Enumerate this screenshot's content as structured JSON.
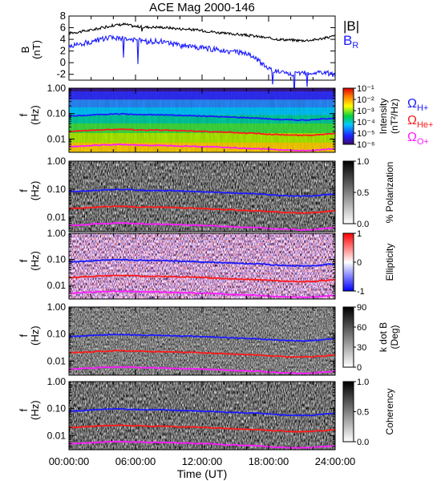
{
  "title": "ACE Mag 2000-146",
  "time_axis": {
    "label": "Time (UT)",
    "ticks": [
      "00:00:00",
      "06:00:00",
      "12:00:00",
      "18:00:00",
      "24:00:00"
    ],
    "range_hours": [
      0,
      24
    ]
  },
  "colors": {
    "B_total": "#000000",
    "B_R": "#1a1aff",
    "omega_H": "#1a1aff",
    "omega_He": "#ff1a1a",
    "omega_O": "#ff1aff"
  },
  "panels": [
    {
      "id": "b-field",
      "ylabel": "B",
      "yunit": "(nT)",
      "ticks": [
        "8",
        "6",
        "4",
        "2",
        "0",
        "-2"
      ],
      "legend": [
        {
          "text": "|B|",
          "color": "#000000"
        },
        {
          "text": "B",
          "sub": "R",
          "color": "#1a1aff"
        }
      ]
    },
    {
      "id": "intensity",
      "ylabel": "f",
      "yunit": "(Hz)",
      "ticks": [
        "1.00",
        "0.10",
        "0.01"
      ],
      "cb_title": "Intensity",
      "cb_unit": "(nT²/Hz)",
      "cb_ticks": [
        "10⁻¹",
        "10⁻²",
        "10⁻³",
        "10⁻⁴",
        "10⁻⁵",
        "10⁻⁶"
      ],
      "gyro_legend": [
        {
          "sym": "Ω",
          "sub": "H+",
          "color": "#1a1aff"
        },
        {
          "sym": "Ω",
          "sub": "He+",
          "color": "#ff1a1a"
        },
        {
          "sym": "Ω",
          "sub": "O+",
          "color": "#ff1aff"
        }
      ]
    },
    {
      "id": "polarization",
      "ylabel": "f",
      "yunit": "(Hz)",
      "ticks": [
        "1.00",
        "0.10",
        "0.01"
      ],
      "cb_title": "% Polarization",
      "cb_unit": "",
      "cb_ticks": [
        "1.0",
        "0.5",
        "0.0"
      ]
    },
    {
      "id": "ellipticity",
      "ylabel": "f",
      "yunit": "(Hz)",
      "ticks": [
        "1.00",
        "0.10",
        "0.01"
      ],
      "cb_title": "Ellipticity",
      "cb_unit": "",
      "cb_ticks": [
        "1",
        "0",
        "-1"
      ]
    },
    {
      "id": "kdotb",
      "ylabel": "f",
      "yunit": "(Hz)",
      "ticks": [
        "1.00",
        "0.10",
        "0.01"
      ],
      "cb_title": "k dot B",
      "cb_unit": "(Deg)",
      "cb_ticks": [
        "90",
        "60",
        "30",
        "0"
      ]
    },
    {
      "id": "coherency",
      "ylabel": "f",
      "yunit": "(Hz)",
      "ticks": [
        "1.00",
        "0.10",
        "0.01"
      ],
      "cb_title": "Coherency",
      "cb_unit": "",
      "cb_ticks": [
        "1.0",
        "0.5",
        "0.0"
      ]
    }
  ],
  "chart_data": {
    "type": "line",
    "title": "ACE Mag 2000-146",
    "xlabel": "Time (UT)",
    "x_hours": [
      0,
      1,
      2,
      3,
      4,
      5,
      6,
      7,
      8,
      9,
      10,
      11,
      12,
      13,
      14,
      15,
      16,
      17,
      18,
      19,
      20,
      21,
      22,
      23,
      24
    ],
    "ylim_B": [
      -3,
      8
    ],
    "series": [
      {
        "name": "|B|",
        "values": [
          5.1,
          5.3,
          5.6,
          6.0,
          6.4,
          6.6,
          6.2,
          6.1,
          6.1,
          6.0,
          5.8,
          5.7,
          5.5,
          5.3,
          5.0,
          4.9,
          4.7,
          4.5,
          4.2,
          4.0,
          3.9,
          3.8,
          3.9,
          4.2,
          4.6
        ]
      },
      {
        "name": "B_R",
        "values": [
          2.8,
          3.2,
          3.6,
          4.0,
          4.3,
          4.1,
          3.9,
          3.6,
          3.7,
          3.4,
          2.9,
          2.8,
          2.5,
          2.3,
          2.1,
          1.8,
          1.5,
          0.5,
          -1.0,
          -1.6,
          -2.0,
          -1.8,
          -1.7,
          -1.6,
          -2.2
        ]
      }
    ],
    "gyrofrequency_hz": {
      "omega_H": [
        0.08,
        0.083,
        0.088,
        0.093,
        0.097,
        0.097,
        0.092,
        0.09,
        0.09,
        0.088,
        0.085,
        0.083,
        0.08,
        0.078,
        0.074,
        0.072,
        0.069,
        0.067,
        0.062,
        0.059,
        0.057,
        0.056,
        0.057,
        0.062,
        0.068
      ],
      "omega_He": [
        0.02,
        0.021,
        0.022,
        0.023,
        0.024,
        0.024,
        0.023,
        0.0225,
        0.0225,
        0.022,
        0.021,
        0.021,
        0.02,
        0.0195,
        0.0185,
        0.018,
        0.017,
        0.0167,
        0.0155,
        0.0148,
        0.0143,
        0.014,
        0.0143,
        0.0155,
        0.017
      ],
      "omega_O": [
        0.005,
        0.0052,
        0.0055,
        0.0058,
        0.006,
        0.006,
        0.0058,
        0.0056,
        0.0056,
        0.0055,
        0.0053,
        0.0052,
        0.005,
        0.0049,
        0.0046,
        0.0045,
        0.0043,
        0.0042,
        0.0039,
        0.0037,
        0.0036,
        0.0035,
        0.0036,
        0.0039,
        0.0042
      ]
    },
    "freq_axis_hz": [
      0.003,
      1.0
    ],
    "freq_scale": "log"
  }
}
